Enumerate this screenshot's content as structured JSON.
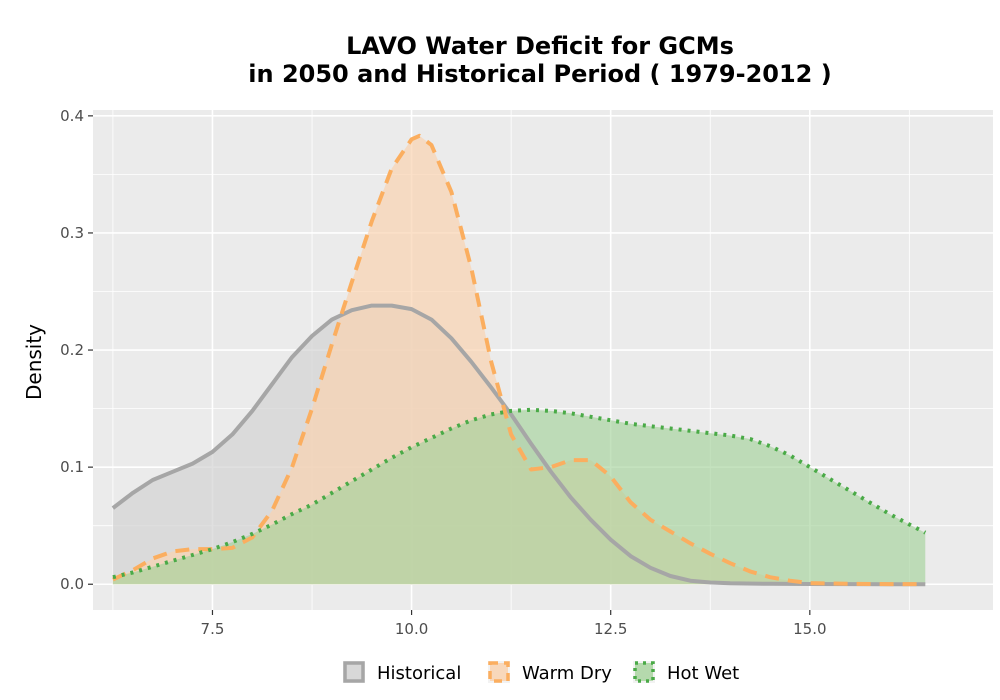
{
  "chart_data": {
    "type": "area",
    "title_lines": [
      "LAVO  Water Deficit for GCMs",
      "in 2050 and Historical Period ( 1979-2012 )"
    ],
    "xlabel": "",
    "ylabel": "Density",
    "xlim": [
      6.0,
      17.3
    ],
    "ylim": [
      -0.022,
      0.405
    ],
    "x_ticks": [
      7.5,
      10.0,
      12.5,
      15.0
    ],
    "x_tick_labels": [
      "7.5",
      "10.0",
      "12.5",
      "15.0"
    ],
    "y_ticks": [
      0.0,
      0.1,
      0.2,
      0.3,
      0.4
    ],
    "y_tick_labels": [
      "0.0",
      "0.1",
      "0.2",
      "0.3",
      "0.4"
    ],
    "grid": true,
    "legend_position": "bottom",
    "series": [
      {
        "name": "Historical",
        "line_color": "#a6a6a6",
        "fill_color": "#d3d3d3",
        "fill_opacity": 0.7,
        "dash": "solid",
        "x": [
          6.25,
          6.5,
          6.75,
          7.0,
          7.25,
          7.5,
          7.75,
          8.0,
          8.25,
          8.5,
          8.75,
          9.0,
          9.25,
          9.5,
          9.75,
          10.0,
          10.25,
          10.5,
          10.75,
          11.0,
          11.25,
          11.5,
          11.75,
          12.0,
          12.25,
          12.5,
          12.75,
          13.0,
          13.25,
          13.5,
          13.75,
          14.0,
          14.5,
          15.0,
          15.5,
          16.0,
          16.45
        ],
        "y": [
          0.065,
          0.078,
          0.089,
          0.096,
          0.103,
          0.113,
          0.128,
          0.148,
          0.171,
          0.194,
          0.212,
          0.226,
          0.234,
          0.238,
          0.238,
          0.235,
          0.226,
          0.21,
          0.19,
          0.168,
          0.145,
          0.12,
          0.096,
          0.074,
          0.055,
          0.038,
          0.024,
          0.014,
          0.007,
          0.003,
          0.0015,
          0.0008,
          0.0004,
          0.0002,
          0.0001,
          0.0,
          0.0
        ]
      },
      {
        "name": "Warm Dry",
        "line_color": "#fbae5f",
        "fill_color": "#f9d3b1",
        "fill_opacity": 0.7,
        "dash": "dashed",
        "x": [
          6.25,
          6.5,
          6.75,
          7.0,
          7.25,
          7.5,
          7.75,
          8.0,
          8.25,
          8.5,
          8.75,
          9.0,
          9.25,
          9.5,
          9.75,
          10.0,
          10.1,
          10.25,
          10.5,
          10.75,
          11.0,
          11.25,
          11.5,
          11.75,
          12.0,
          12.25,
          12.5,
          12.75,
          13.0,
          13.25,
          13.5,
          13.75,
          14.0,
          14.25,
          14.5,
          14.75,
          15.0,
          15.5,
          16.0,
          16.45
        ],
        "y": [
          0.004,
          0.012,
          0.022,
          0.028,
          0.03,
          0.03,
          0.031,
          0.04,
          0.063,
          0.1,
          0.15,
          0.205,
          0.258,
          0.31,
          0.355,
          0.38,
          0.383,
          0.375,
          0.335,
          0.27,
          0.19,
          0.128,
          0.098,
          0.1,
          0.106,
          0.106,
          0.092,
          0.07,
          0.055,
          0.045,
          0.035,
          0.026,
          0.018,
          0.011,
          0.006,
          0.003,
          0.001,
          0.0004,
          0.0001,
          0.0
        ]
      },
      {
        "name": "Hot Wet",
        "line_color": "#4aaa47",
        "fill_color": "#a5d29b",
        "fill_opacity": 0.65,
        "dash": "dotted",
        "x": [
          6.25,
          6.5,
          6.75,
          7.0,
          7.25,
          7.5,
          7.75,
          8.0,
          8.25,
          8.5,
          8.75,
          9.0,
          9.25,
          9.5,
          9.75,
          10.0,
          10.25,
          10.5,
          10.75,
          11.0,
          11.25,
          11.5,
          11.75,
          12.0,
          12.25,
          12.5,
          12.75,
          13.0,
          13.25,
          13.5,
          13.75,
          14.0,
          14.25,
          14.5,
          14.75,
          15.0,
          15.25,
          15.5,
          15.75,
          16.0,
          16.25,
          16.45
        ],
        "y": [
          0.006,
          0.01,
          0.015,
          0.02,
          0.025,
          0.03,
          0.036,
          0.043,
          0.051,
          0.06,
          0.068,
          0.078,
          0.088,
          0.098,
          0.108,
          0.117,
          0.125,
          0.133,
          0.14,
          0.145,
          0.148,
          0.149,
          0.148,
          0.146,
          0.143,
          0.14,
          0.137,
          0.135,
          0.133,
          0.131,
          0.129,
          0.127,
          0.124,
          0.118,
          0.11,
          0.1,
          0.09,
          0.08,
          0.07,
          0.06,
          0.051,
          0.044
        ]
      }
    ]
  }
}
